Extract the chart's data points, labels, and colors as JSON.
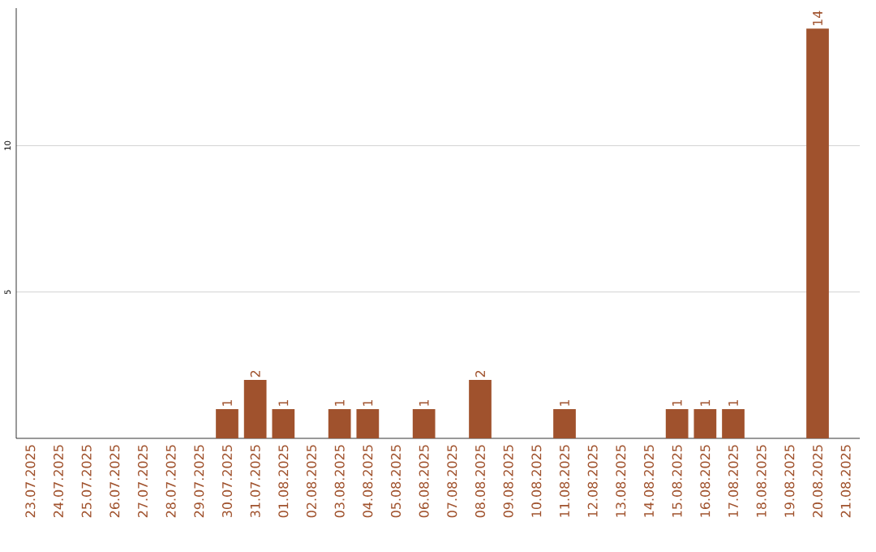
{
  "chart_data": {
    "type": "bar",
    "categories": [
      "23.07.2025",
      "24.07.2025",
      "25.07.2025",
      "26.07.2025",
      "27.07.2025",
      "28.07.2025",
      "29.07.2025",
      "30.07.2025",
      "31.07.2025",
      "01.08.2025",
      "02.08.2025",
      "03.08.2025",
      "04.08.2025",
      "05.08.2025",
      "06.08.2025",
      "07.08.2025",
      "08.08.2025",
      "09.08.2025",
      "10.08.2025",
      "11.08.2025",
      "12.08.2025",
      "13.08.2025",
      "14.08.2025",
      "15.08.2025",
      "16.08.2025",
      "17.08.2025",
      "18.08.2025",
      "19.08.2025",
      "20.08.2025",
      "21.08.2025"
    ],
    "values": [
      0,
      0,
      0,
      0,
      0,
      0,
      0,
      1,
      2,
      1,
      0,
      1,
      1,
      0,
      1,
      0,
      2,
      0,
      0,
      1,
      0,
      0,
      0,
      1,
      1,
      1,
      0,
      0,
      14,
      0
    ],
    "value_labels": [
      null,
      null,
      null,
      null,
      null,
      null,
      null,
      "1",
      "2",
      "1",
      null,
      "1",
      "1",
      null,
      "1",
      null,
      "2",
      null,
      null,
      "1",
      null,
      null,
      null,
      "1",
      "1",
      "1",
      null,
      null,
      "14",
      null
    ],
    "color": "#a0522d",
    "ylim": [
      0,
      14.7
    ],
    "yticks": [
      5,
      10
    ],
    "grid": "y"
  }
}
